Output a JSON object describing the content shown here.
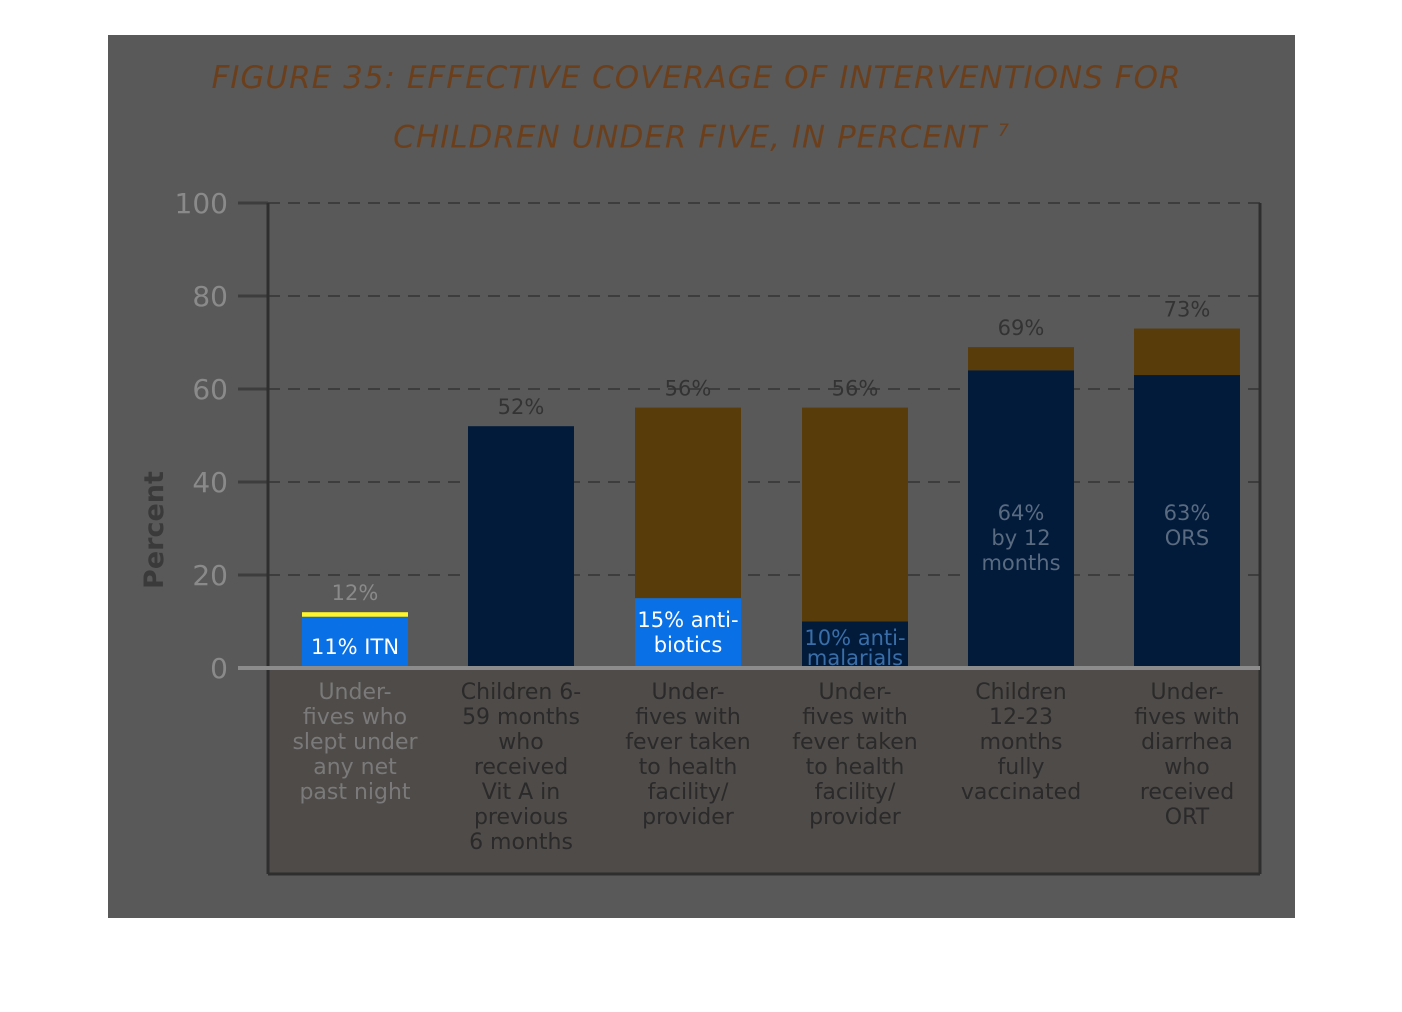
{
  "title": {
    "line1": "FIGURE 35: EFFECTIVE COVERAGE OF INTERVENTIONS FOR",
    "line2": "CHILDREN UNDER FIVE, IN PERCENT",
    "footnote": "7"
  },
  "colors": {
    "panel": "#595959",
    "dark_navy": "#021b3b",
    "bright_blue": "#0a70e6",
    "brown": "#583c0a",
    "brown_highlight": "#b87f1d",
    "yellow": "#fff52a",
    "title": "#6b3f1c"
  },
  "chart_data": {
    "type": "bar",
    "stacked": true,
    "title": "FIGURE 35: EFFECTIVE COVERAGE OF INTERVENTIONS FOR CHILDREN UNDER FIVE, IN PERCENT",
    "ylabel": "Percent",
    "ylim": [
      0,
      100
    ],
    "yticks": [
      "0",
      "20",
      "40",
      "60",
      "80",
      "100"
    ],
    "grid": true,
    "categories": [
      "Under-fives who slept under any net past night",
      "Children 6-59 months who received Vit A in previous 6 months",
      "Under-fives with fever taken to health facility/ provider",
      "Under-fives with fever taken to health facility/ provider",
      "Children 12-23 months fully vaccinated",
      "Under-fives with diarrhea who received ORT"
    ],
    "category_lines": [
      [
        "Under-",
        "fives who",
        "slept under",
        "any net",
        "past night"
      ],
      [
        "Children 6-",
        "59 months",
        "who",
        "received",
        "Vit A in",
        "previous",
        "6 months"
      ],
      [
        "Under-",
        "fives with",
        "fever taken",
        "to health",
        "facility/",
        "provider"
      ],
      [
        "Under-",
        "fives with",
        "fever taken",
        "to health",
        "facility/",
        "provider"
      ],
      [
        "Children",
        "12-23",
        "months",
        "fully",
        "vaccinated"
      ],
      [
        "Under-",
        "fives with",
        "diarrhea",
        "who",
        "received",
        "ORT"
      ]
    ],
    "totals": [
      12,
      52,
      56,
      56,
      69,
      73
    ],
    "total_labels": [
      "12%",
      "52%",
      "56%",
      "56%",
      "69%",
      "73%"
    ],
    "inner_values": [
      11,
      52,
      15,
      10,
      64,
      63
    ],
    "inner_labels": [
      [
        "11% ITN"
      ],
      [],
      [
        "15% anti-",
        "biotics"
      ],
      [
        "10% anti-",
        "malarials"
      ],
      [
        "64%",
        "by 12",
        "months"
      ],
      [
        "63%",
        "ORS"
      ]
    ]
  }
}
